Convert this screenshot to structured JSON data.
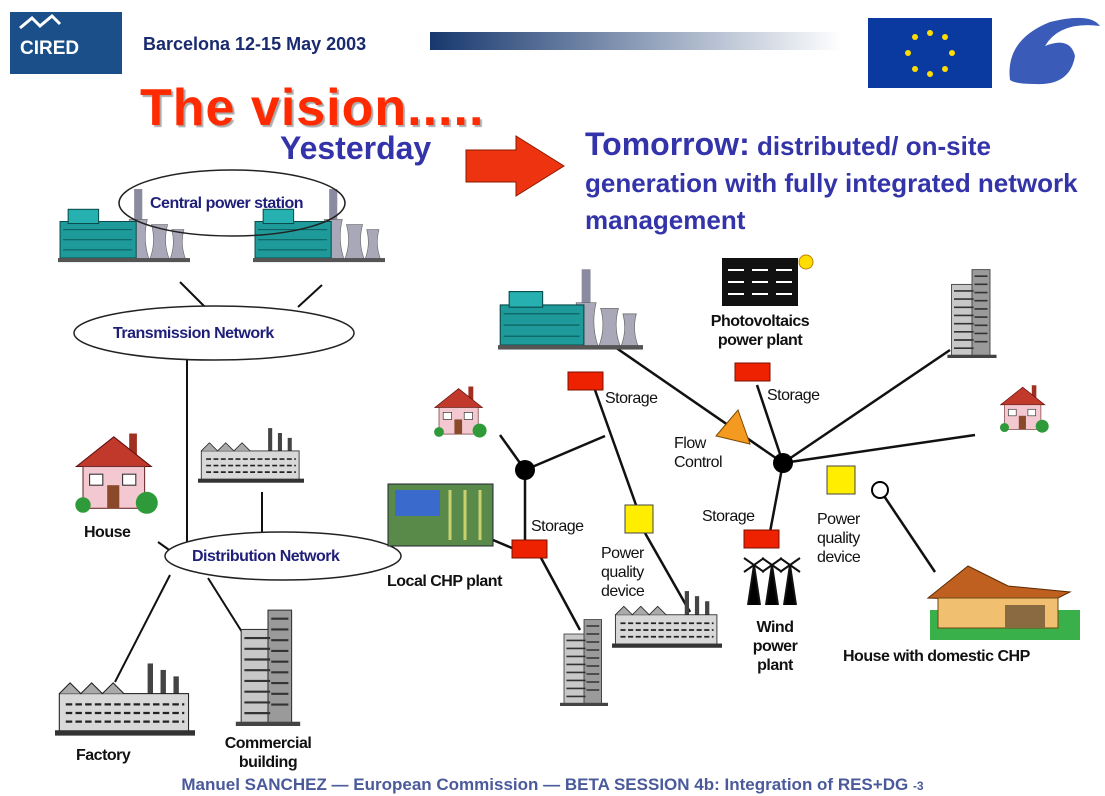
{
  "header": {
    "logo": "CIRED",
    "event": "Barcelona 12-15 May 2003"
  },
  "title": "The vision.....",
  "yesterday": {
    "label": "Yesterday",
    "nodes": [
      "Central power station",
      "Transmission Network",
      "House",
      "Distribution Network",
      "Factory",
      "Commercial building"
    ]
  },
  "tomorrow": {
    "label": "Tomorrow:",
    "description": "distributed/ on-site generation with fully integrated network management",
    "nodes": [
      "Photovoltaics power plant",
      "Storage",
      "Storage",
      "Flow Control",
      "Storage",
      "Power quality device",
      "Storage",
      "Power quality device",
      "Local CHP plant",
      "Wind power plant",
      "House with domestic CHP"
    ]
  },
  "footer": {
    "text": "Manuel SANCHEZ — European Commission — BETA SESSION 4b: Integration of RES+DG",
    "page": "-3"
  }
}
